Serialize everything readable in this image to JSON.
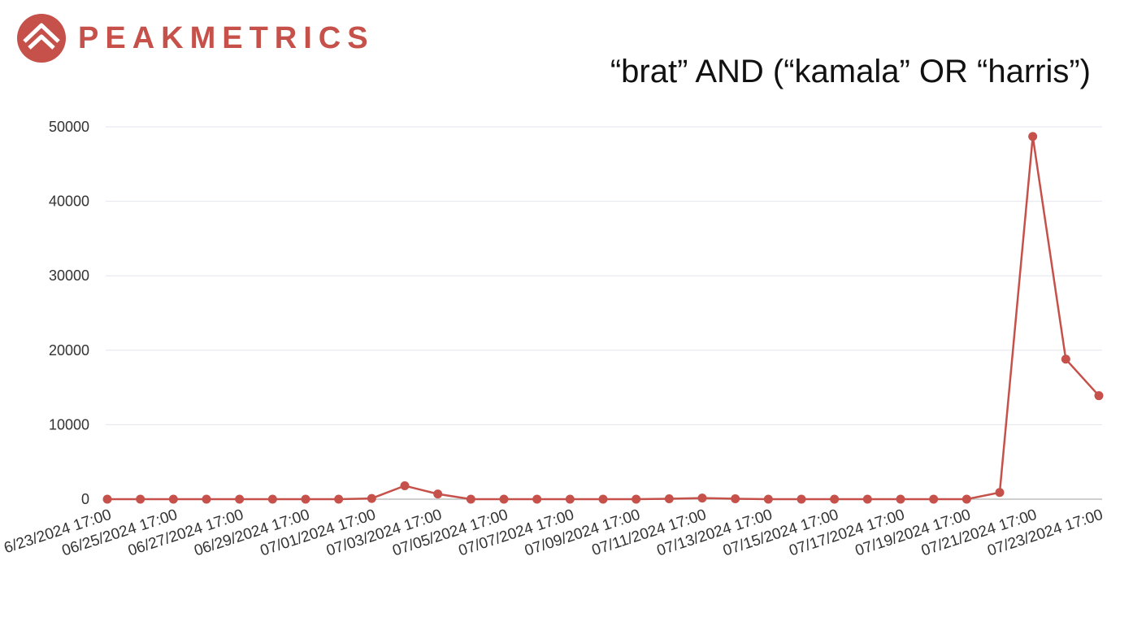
{
  "brand": {
    "name": "PEAKMETRICS",
    "logo_icon": "mountain-peak-icon",
    "color": "#c5514a"
  },
  "chart_data": {
    "type": "line",
    "title": "“brat” AND (“kamala” OR “harris”)",
    "xlabel": "",
    "ylabel": "",
    "ylim": [
      0,
      50000
    ],
    "yticks": [
      "50000",
      "40000",
      "30000",
      "20000",
      "10000",
      "0"
    ],
    "grid": true,
    "x": [
      "06/23/2024 17:00",
      "06/24/2024 17:00",
      "06/25/2024 17:00",
      "06/26/2024 17:00",
      "06/27/2024 17:00",
      "06/28/2024 17:00",
      "06/29/2024 17:00",
      "06/30/2024 17:00",
      "07/01/2024 17:00",
      "07/02/2024 17:00",
      "07/03/2024 17:00",
      "07/04/2024 17:00",
      "07/05/2024 17:00",
      "07/06/2024 17:00",
      "07/07/2024 17:00",
      "07/08/2024 17:00",
      "07/09/2024 17:00",
      "07/10/2024 17:00",
      "07/11/2024 17:00",
      "07/12/2024 17:00",
      "07/13/2024 17:00",
      "07/14/2024 17:00",
      "07/15/2024 17:00",
      "07/16/2024 17:00",
      "07/17/2024 17:00",
      "07/18/2024 17:00",
      "07/19/2024 17:00",
      "07/20/2024 17:00",
      "07/21/2024 17:00",
      "07/22/2024 17:00",
      "07/23/2024 17:00"
    ],
    "xtick_labels": [
      "6/23/2024 17:00",
      "06/25/2024 17:00",
      "06/27/2024 17:00",
      "06/29/2024 17:00",
      "07/01/2024 17:00",
      "07/03/2024 17:00",
      "07/05/2024 17:00",
      "07/07/2024 17:00",
      "07/09/2024 17:00",
      "07/11/2024 17:00",
      "07/13/2024 17:00",
      "07/15/2024 17:00",
      "07/17/2024 17:00",
      "07/19/2024 17:00",
      "07/21/2024 17:00",
      "07/23/2024 17:00"
    ],
    "series": [
      {
        "values": [
          0,
          0,
          0,
          0,
          0,
          0,
          0,
          0,
          100,
          1800,
          700,
          0,
          0,
          0,
          0,
          0,
          0,
          50,
          150,
          50,
          0,
          0,
          0,
          0,
          0,
          0,
          0,
          900,
          48700,
          18800,
          13900
        ],
        "color": "#c5514a"
      }
    ]
  }
}
